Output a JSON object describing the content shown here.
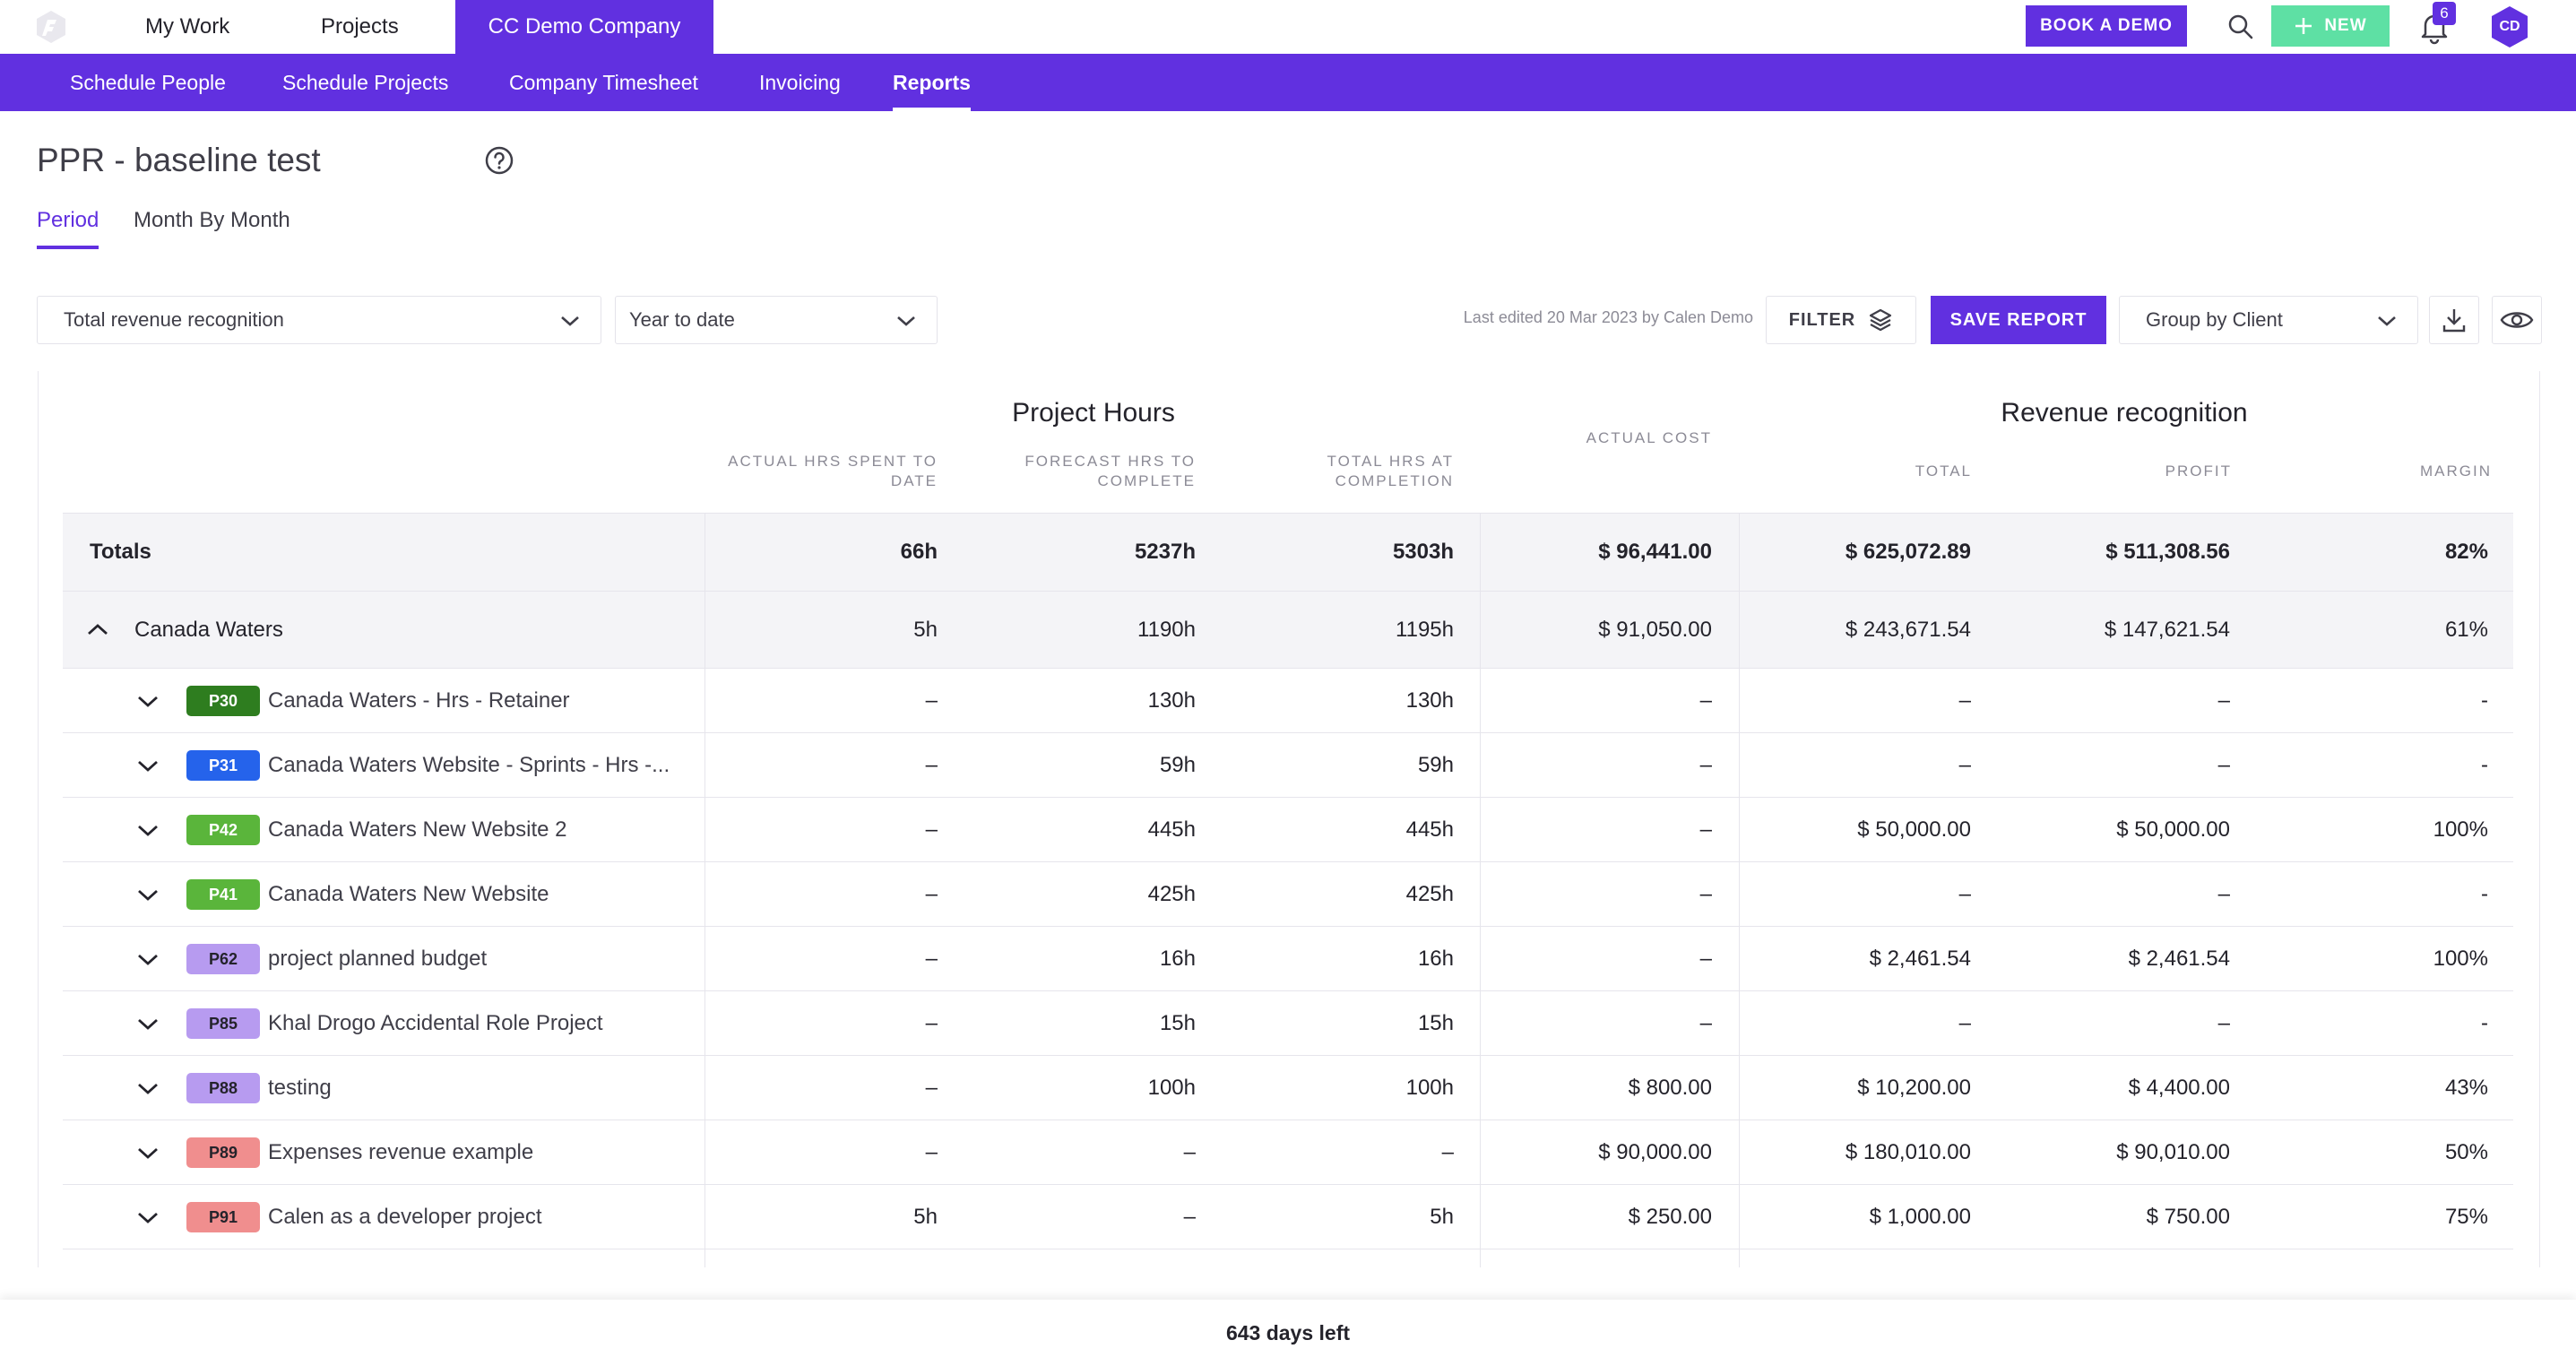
{
  "topbar": {
    "tabs": [
      {
        "label": "My Work"
      },
      {
        "label": "Projects"
      },
      {
        "label": "CC Demo Company"
      }
    ],
    "book_demo_label": "BOOK A DEMO",
    "new_label": "NEW",
    "notification_count": "6",
    "avatar_initials": "CD",
    "accent_color": "#6130e0",
    "new_color": "#5ee0a4"
  },
  "subnav": {
    "items": [
      {
        "label": "Schedule People"
      },
      {
        "label": "Schedule Projects"
      },
      {
        "label": "Company Timesheet"
      },
      {
        "label": "Invoicing"
      },
      {
        "label": "Reports"
      }
    ]
  },
  "page": {
    "title": "PPR - baseline test",
    "tabs": [
      {
        "label": "Period"
      },
      {
        "label": "Month By Month"
      }
    ]
  },
  "toolbar": {
    "report_type": "Total revenue recognition",
    "period": "Year to date",
    "last_edited": "Last edited 20 Mar 2023 by Calen Demo",
    "filter_label": "FILTER",
    "save_label": "SAVE REPORT",
    "group_by": "Group by Client"
  },
  "table": {
    "group_headers": {
      "project_hours": "Project Hours",
      "revenue": "Revenue recognition"
    },
    "columns": {
      "actual_hrs": "ACTUAL HRS SPENT TO DATE",
      "forecast_hrs": "FORECAST HRS TO COMPLETE",
      "total_hrs": "TOTAL HRS AT COMPLETION",
      "actual_cost": "ACTUAL COST",
      "total": "TOTAL",
      "profit": "PROFIT",
      "margin": "MARGIN"
    },
    "totals": {
      "label": "Totals",
      "actual_hrs": "66h",
      "forecast_hrs": "5237h",
      "total_hrs": "5303h",
      "actual_cost": "$ 96,441.00",
      "total": "$ 625,072.89",
      "profit": "$ 511,308.56",
      "margin": "82%"
    },
    "group": {
      "label": "Canada Waters",
      "actual_hrs": "5h",
      "forecast_hrs": "1190h",
      "total_hrs": "1195h",
      "actual_cost": "$ 91,050.00",
      "total": "$ 243,671.54",
      "profit": "$ 147,621.54",
      "margin": "61%"
    },
    "projects": [
      {
        "code": "P30",
        "color": "#2e7d1f",
        "name": "Canada Waters - Hrs - Retainer",
        "actual_hrs": "–",
        "forecast_hrs": "130h",
        "total_hrs": "130h",
        "actual_cost": "–",
        "total": "–",
        "profit": "–",
        "margin": "-"
      },
      {
        "code": "P31",
        "color": "#2563eb",
        "name": "Canada Waters Website - Sprints - Hrs -...",
        "actual_hrs": "–",
        "forecast_hrs": "59h",
        "total_hrs": "59h",
        "actual_cost": "–",
        "total": "–",
        "profit": "–",
        "margin": "-"
      },
      {
        "code": "P42",
        "color": "#5ab53b",
        "name": "Canada Waters New Website 2",
        "actual_hrs": "–",
        "forecast_hrs": "445h",
        "total_hrs": "445h",
        "actual_cost": "–",
        "total": "$ 50,000.00",
        "profit": "$ 50,000.00",
        "margin": "100%"
      },
      {
        "code": "P41",
        "color": "#5ab53b",
        "name": "Canada Waters New Website",
        "actual_hrs": "–",
        "forecast_hrs": "425h",
        "total_hrs": "425h",
        "actual_cost": "–",
        "total": "–",
        "profit": "–",
        "margin": "-"
      },
      {
        "code": "P62",
        "color": "#b79bf0",
        "name": "project planned budget",
        "actual_hrs": "–",
        "forecast_hrs": "16h",
        "total_hrs": "16h",
        "actual_cost": "–",
        "total": "$ 2,461.54",
        "profit": "$ 2,461.54",
        "margin": "100%"
      },
      {
        "code": "P85",
        "color": "#b79bf0",
        "name": "Khal Drogo Accidental Role Project",
        "actual_hrs": "–",
        "forecast_hrs": "15h",
        "total_hrs": "15h",
        "actual_cost": "–",
        "total": "–",
        "profit": "–",
        "margin": "-"
      },
      {
        "code": "P88",
        "color": "#b79bf0",
        "name": "testing",
        "actual_hrs": "–",
        "forecast_hrs": "100h",
        "total_hrs": "100h",
        "actual_cost": "$ 800.00",
        "total": "$ 10,200.00",
        "profit": "$ 4,400.00",
        "margin": "43%"
      },
      {
        "code": "P89",
        "color": "#f08e8e",
        "name": "Expenses revenue example",
        "actual_hrs": "–",
        "forecast_hrs": "–",
        "total_hrs": "–",
        "actual_cost": "$ 90,000.00",
        "total": "$ 180,010.00",
        "profit": "$ 90,010.00",
        "margin": "50%"
      },
      {
        "code": "P91",
        "color": "#f08e8e",
        "name": "Calen as a developer project",
        "actual_hrs": "5h",
        "forecast_hrs": "–",
        "total_hrs": "5h",
        "actual_cost": "$ 250.00",
        "total": "$ 1,000.00",
        "profit": "$ 750.00",
        "margin": "75%"
      }
    ]
  },
  "footer": {
    "trial_text": "643 days left"
  }
}
